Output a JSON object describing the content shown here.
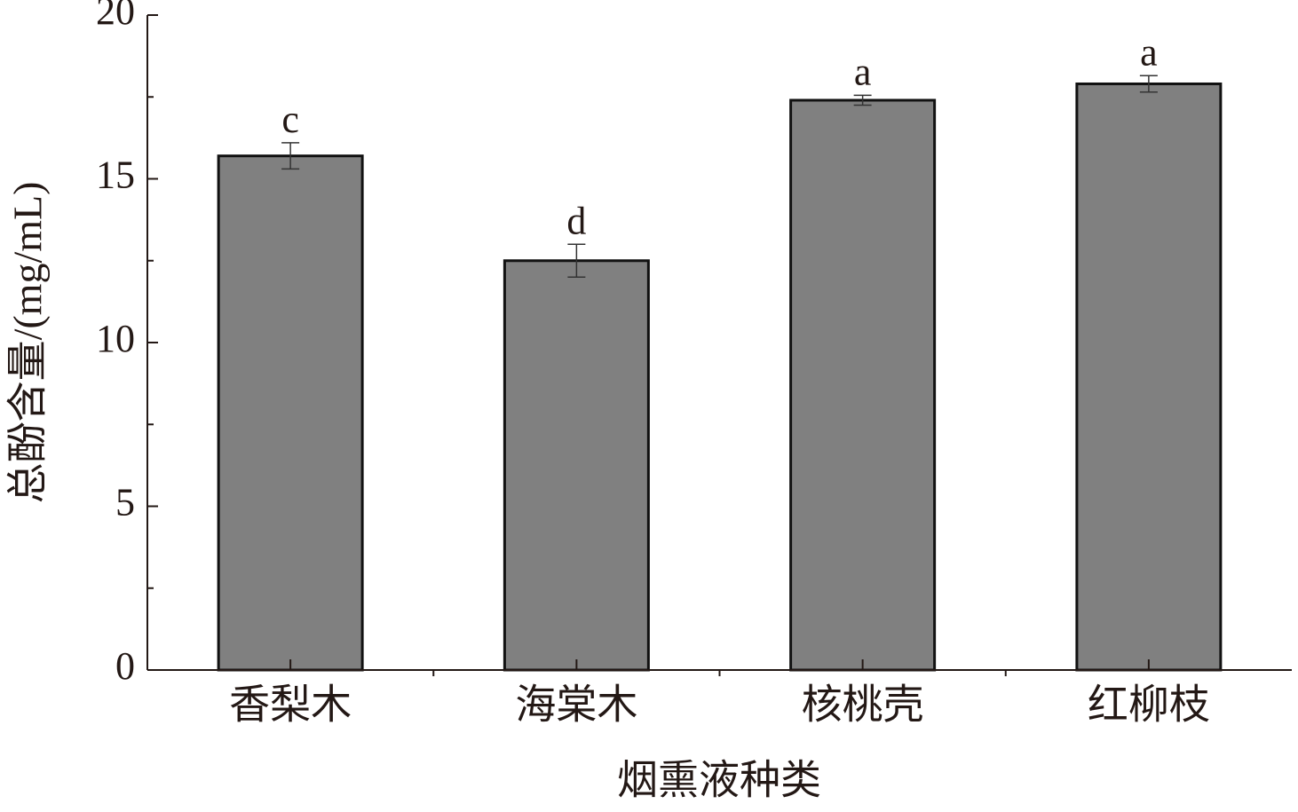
{
  "chart_data": {
    "type": "bar",
    "x_label": "烟熏液种类",
    "y_label": "总酚含量/(mg/mL)",
    "categories": [
      "香梨木",
      "海棠木",
      "核桃壳",
      "红柳枝"
    ],
    "values": [
      15.7,
      12.5,
      17.4,
      17.9
    ],
    "errors": [
      0.4,
      0.5,
      0.15,
      0.25
    ],
    "annotations": [
      "c",
      "d",
      "a",
      "a"
    ],
    "color": "#808080",
    "ylim": [
      0,
      20
    ],
    "yticks": [
      0,
      5,
      10,
      15,
      20
    ],
    "grid": false
  }
}
